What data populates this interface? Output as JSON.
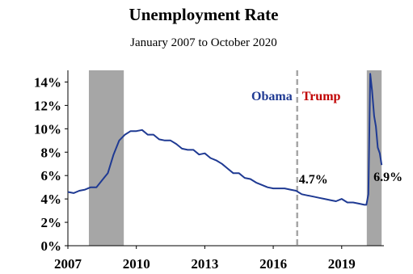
{
  "chart_data": {
    "type": "line",
    "title": "Unemployment Rate",
    "subtitle": "January 2007 to October 2020",
    "xlim": [
      2007.0,
      2020.85
    ],
    "ylim": [
      0,
      15
    ],
    "x_ticks": [
      2007,
      2010,
      2013,
      2016,
      2019
    ],
    "x_tick_labels": [
      "2007",
      "2010",
      "2013",
      "2016",
      "2019"
    ],
    "y_ticks": [
      0,
      2,
      4,
      6,
      8,
      10,
      12,
      14
    ],
    "y_tick_labels": [
      "0%",
      "2%",
      "4%",
      "6%",
      "8%",
      "10%",
      "12%",
      "14%"
    ],
    "grid": false,
    "line_color": "#1f3a93",
    "recession_color": "#a6a6a6",
    "divider_color": "#a6a6a6",
    "recessions": [
      {
        "start": 2007.92,
        "end": 2009.45
      },
      {
        "start": 2020.1,
        "end": 2020.75
      }
    ],
    "divider_x": 2017.05,
    "series": [
      {
        "name": "",
        "x": [
          2007.0,
          2007.25,
          2007.5,
          2007.75,
          2008.0,
          2008.25,
          2008.5,
          2008.75,
          2009.0,
          2009.25,
          2009.5,
          2009.75,
          2010.0,
          2010.25,
          2010.5,
          2010.75,
          2011.0,
          2011.25,
          2011.5,
          2011.75,
          2012.0,
          2012.25,
          2012.5,
          2012.75,
          2013.0,
          2013.25,
          2013.5,
          2013.75,
          2014.0,
          2014.25,
          2014.5,
          2014.75,
          2015.0,
          2015.25,
          2015.5,
          2015.75,
          2016.0,
          2016.25,
          2016.5,
          2016.75,
          2017.0,
          2017.25,
          2017.5,
          2017.75,
          2018.0,
          2018.25,
          2018.5,
          2018.75,
          2019.0,
          2019.25,
          2019.5,
          2019.75,
          2020.0,
          2020.08,
          2020.17,
          2020.25,
          2020.33,
          2020.42,
          2020.5,
          2020.58,
          2020.67,
          2020.75
        ],
        "values": [
          4.6,
          4.5,
          4.7,
          4.8,
          5.0,
          5.0,
          5.6,
          6.2,
          7.8,
          9.0,
          9.5,
          9.8,
          9.8,
          9.9,
          9.5,
          9.5,
          9.1,
          9.0,
          9.0,
          8.7,
          8.3,
          8.2,
          8.2,
          7.8,
          7.9,
          7.5,
          7.3,
          7.0,
          6.6,
          6.2,
          6.2,
          5.8,
          5.7,
          5.4,
          5.2,
          5.0,
          4.9,
          4.9,
          4.9,
          4.8,
          4.7,
          4.4,
          4.3,
          4.2,
          4.1,
          4.0,
          3.9,
          3.8,
          4.0,
          3.7,
          3.7,
          3.6,
          3.5,
          3.5,
          4.4,
          14.7,
          13.3,
          11.1,
          10.2,
          8.4,
          7.9,
          6.9
        ]
      }
    ],
    "annotations": {
      "obama": {
        "text": "Obama",
        "color": "#1f3a93"
      },
      "trump": {
        "text": "Trump",
        "color": "#c00000"
      },
      "start_value": {
        "text": "4.7%",
        "x": 2017.05,
        "y": 4.7
      },
      "end_value": {
        "text": "6.9%",
        "x": 2020.75,
        "y": 6.9
      }
    }
  }
}
